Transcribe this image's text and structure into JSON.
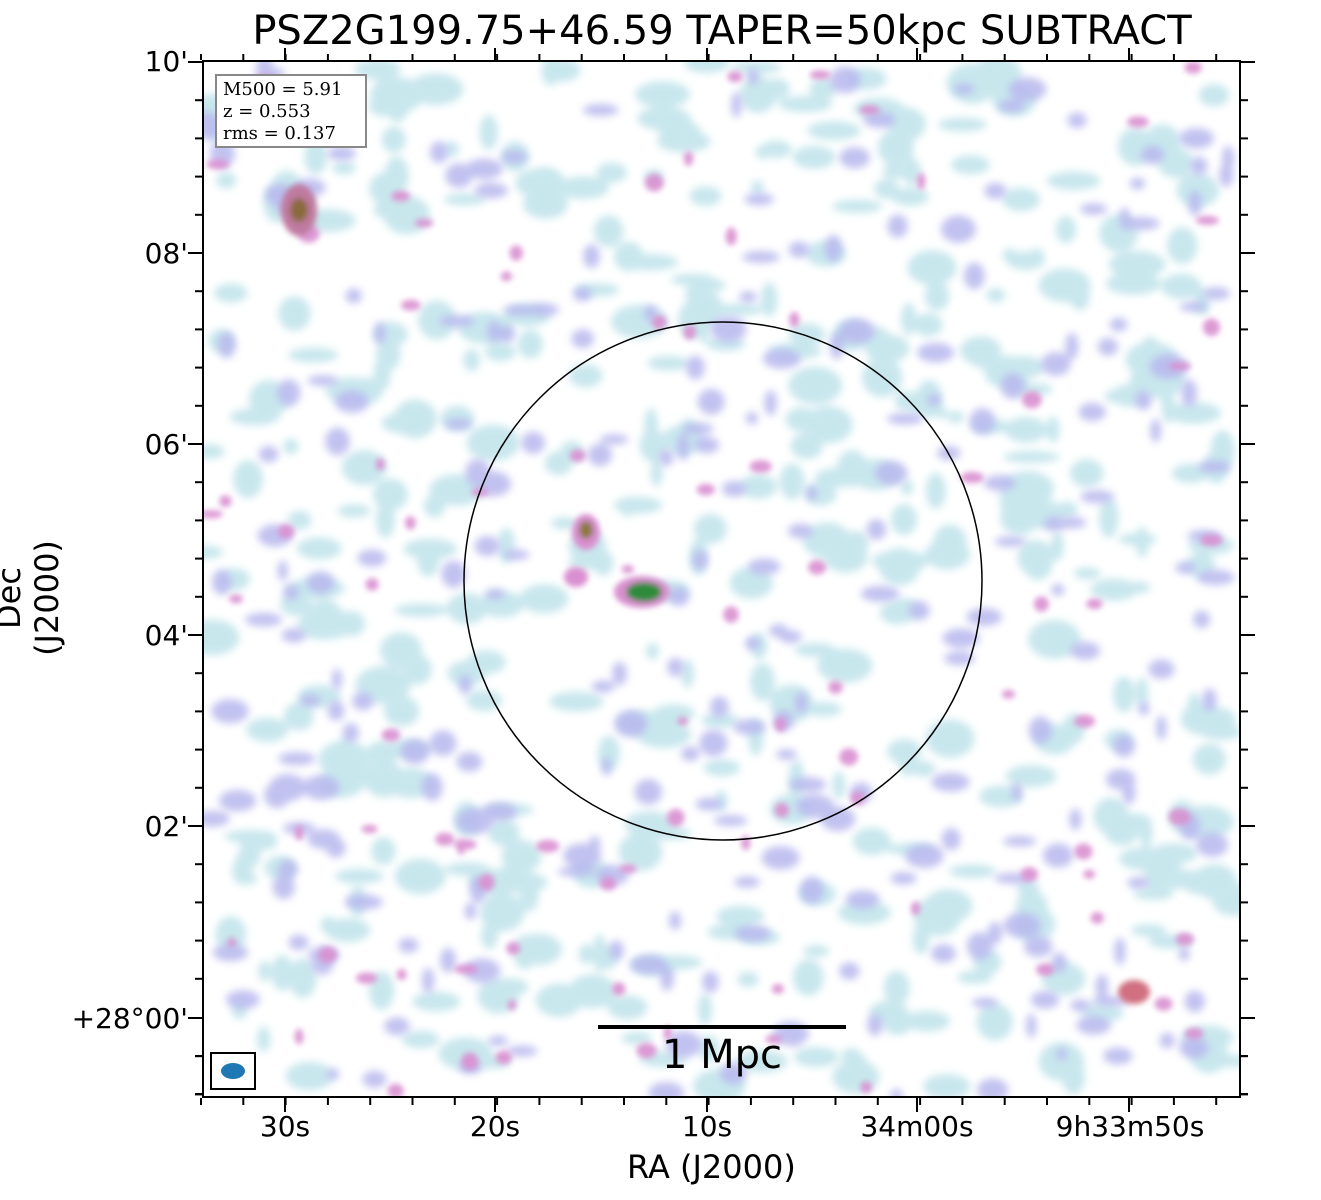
{
  "title": "PSZ2G199.75+46.59 TAPER=50kpc SUBTRACT",
  "info": {
    "m500": "M500 = 5.91",
    "z": "z = 0.553",
    "rms": "rms = 0.137"
  },
  "axes": {
    "xlabel": "RA (J2000)",
    "ylabel": "Dec (J2000)",
    "x_ticks": [
      "30s",
      "20s",
      "10s",
      "34m00s",
      "9h33m50s"
    ],
    "y_ticks": [
      "10'",
      "08'",
      "06'",
      "04'",
      "02'",
      "+28°00'"
    ]
  },
  "scalebar": {
    "label": "1 Mpc"
  },
  "colors": {
    "noise_light": "#bfe3ea",
    "noise_mid": "#b8b8ee",
    "noise_high": "#d98fd0",
    "peak": "#2e8b3a",
    "beam": "#1f77b4"
  }
}
